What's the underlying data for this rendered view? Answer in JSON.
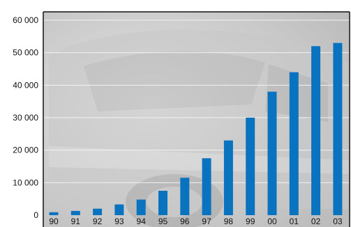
{
  "chart_data": {
    "type": "bar",
    "categories": [
      "90",
      "91",
      "92",
      "93",
      "94",
      "95",
      "96",
      "97",
      "98",
      "99",
      "00",
      "01",
      "02",
      "03"
    ],
    "values": [
      900,
      1300,
      2000,
      3300,
      4800,
      7500,
      11500,
      17500,
      23000,
      30000,
      38000,
      44000,
      52000,
      53000
    ],
    "title": "",
    "xlabel": "",
    "ylabel": "",
    "ylim": [
      0,
      60000
    ],
    "yticks": [
      0,
      10000,
      20000,
      30000,
      40000,
      50000,
      60000
    ],
    "ytick_labels": [
      "0",
      "10 000",
      "20 000",
      "30 000",
      "40 000",
      "50 000",
      "60 000"
    ],
    "grid": true,
    "legend": "none",
    "colors": {
      "bar": "#0a73c0",
      "plot_background": "#d2d2d2",
      "grid": "#f2f2f2",
      "frame": "#111111"
    },
    "background_image": "car-photo-faded"
  }
}
